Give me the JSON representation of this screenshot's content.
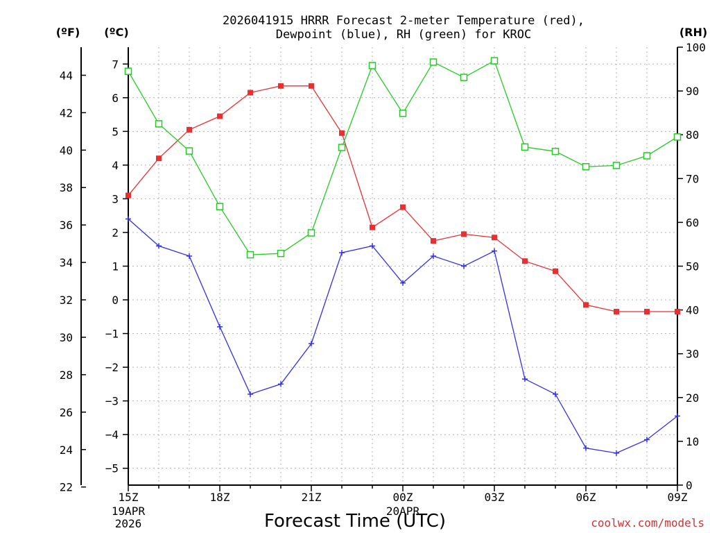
{
  "chart_data": {
    "type": "line",
    "title_line1": "2026041915 HRRR Forecast 2-meter Temperature (red),",
    "title_line2": "Dewpoint (blue), RH (green) for KROC",
    "xlabel": "Forecast Time (UTC)",
    "unit_left_f": "(ºF)",
    "unit_left_c": "(ºC)",
    "unit_right": "(RH)",
    "credit": "coolwx.com/models",
    "credit_color": "#cc3333",
    "x_hours": [
      15,
      16,
      17,
      18,
      19,
      20,
      21,
      22,
      23,
      24,
      25,
      26,
      27,
      28,
      29,
      30,
      31,
      32,
      33
    ],
    "x_ticks": [
      {
        "hour": 15,
        "label": "15Z",
        "sub": [
          "19APR",
          "2026"
        ]
      },
      {
        "hour": 18,
        "label": "18Z",
        "sub": []
      },
      {
        "hour": 21,
        "label": "21Z",
        "sub": []
      },
      {
        "hour": 24,
        "label": "00Z",
        "sub": [
          "20APR"
        ]
      },
      {
        "hour": 27,
        "label": "03Z",
        "sub": []
      },
      {
        "hour": 30,
        "label": "06Z",
        "sub": []
      },
      {
        "hour": 33,
        "label": "09Z",
        "sub": []
      }
    ],
    "ylim_c": [
      -5.5,
      7.5
    ],
    "yticks_c": [
      -5,
      -4,
      -3,
      -2,
      -1,
      0,
      1,
      2,
      3,
      4,
      5,
      6,
      7
    ],
    "ylim_rh": [
      0,
      100
    ],
    "yticks_rh": [
      0,
      10,
      20,
      30,
      40,
      50,
      60,
      70,
      80,
      90,
      100
    ],
    "yticks_f": [
      22,
      24,
      26,
      28,
      30,
      32,
      34,
      36,
      38,
      40,
      42,
      44
    ],
    "grid": true,
    "series": [
      {
        "name": "Temperature",
        "axis": "c",
        "color": "#e83030",
        "marker": "filled-square",
        "values": [
          3.1,
          4.2,
          5.05,
          5.45,
          6.15,
          6.35,
          6.35,
          4.95,
          2.15,
          2.75,
          1.75,
          1.95,
          1.85,
          1.15,
          0.85,
          -0.15,
          -0.35,
          -0.35,
          -0.35
        ]
      },
      {
        "name": "Dewpoint",
        "axis": "c",
        "color": "#3030e8",
        "marker": "plus",
        "values": [
          2.4,
          1.6,
          1.3,
          -0.8,
          -2.8,
          -2.5,
          -1.3,
          1.4,
          1.6,
          0.5,
          1.3,
          1.0,
          1.45,
          -2.35,
          -2.8,
          -4.4,
          -4.55,
          -4.15,
          -3.45
        ]
      },
      {
        "name": "RH",
        "axis": "rh",
        "color": "#22cc22",
        "marker": "open-square",
        "values": [
          94.5,
          82.5,
          76.3,
          63.6,
          52.6,
          52.9,
          57.6,
          77.1,
          95.8,
          84.9,
          96.6,
          93.1,
          96.9,
          77.2,
          76.2,
          72.7,
          73.0,
          75.2,
          79.5
        ]
      }
    ]
  }
}
